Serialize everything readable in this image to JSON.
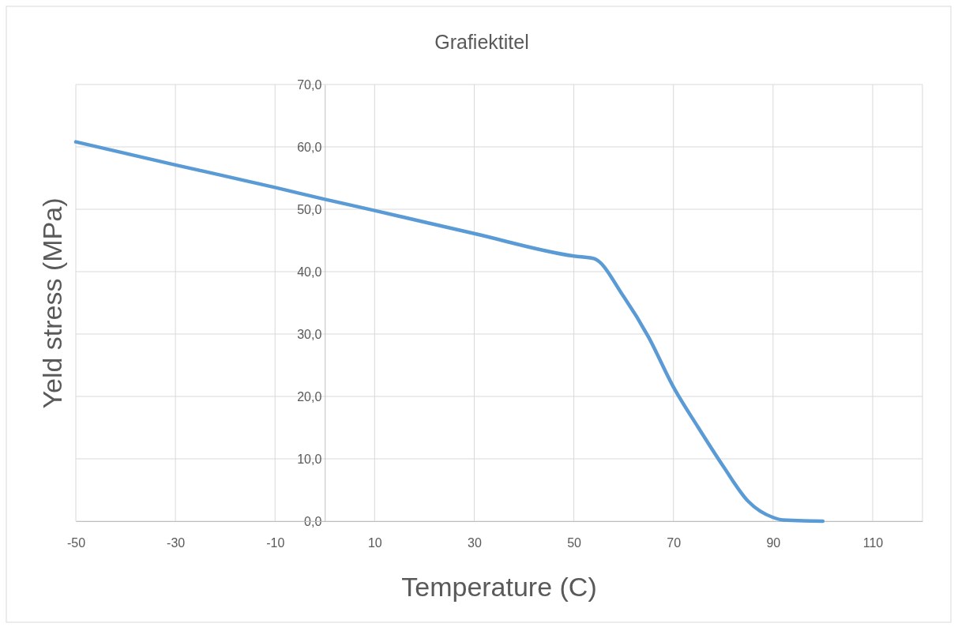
{
  "chart_data": {
    "type": "line",
    "title": "Grafiektitel",
    "xlabel": "Temperature (C)",
    "ylabel": "Yeld stress (MPa)",
    "x": [
      -50,
      -30,
      -10,
      0,
      10,
      30,
      50,
      54,
      60,
      65,
      70,
      75,
      80,
      85,
      90,
      92,
      100
    ],
    "series": [
      {
        "color": "#5b9bd5",
        "values": [
          60.8,
          57.1,
          53.5,
          51.6,
          49.8,
          46.1,
          42.5,
          42.1,
          36,
          29.5,
          21.5,
          15,
          8.8,
          3.2,
          0.6,
          0.2,
          0
        ]
      }
    ],
    "xlim": [
      -50,
      120
    ],
    "xticks": [
      -50,
      -30,
      -10,
      10,
      30,
      50,
      70,
      90,
      110
    ],
    "ylim": [
      0,
      70
    ],
    "yticks": [
      {
        "value": 0,
        "label": "0,0"
      },
      {
        "value": 10,
        "label": "10,0"
      },
      {
        "value": 20,
        "label": "20,0"
      },
      {
        "value": 30,
        "label": "30,0"
      },
      {
        "value": 40,
        "label": "40,0"
      },
      {
        "value": 50,
        "label": "50,0"
      },
      {
        "value": 60,
        "label": "60,0"
      },
      {
        "value": 70,
        "label": "70,0"
      }
    ],
    "grid": true,
    "marker": "none",
    "line_style": "solid"
  }
}
